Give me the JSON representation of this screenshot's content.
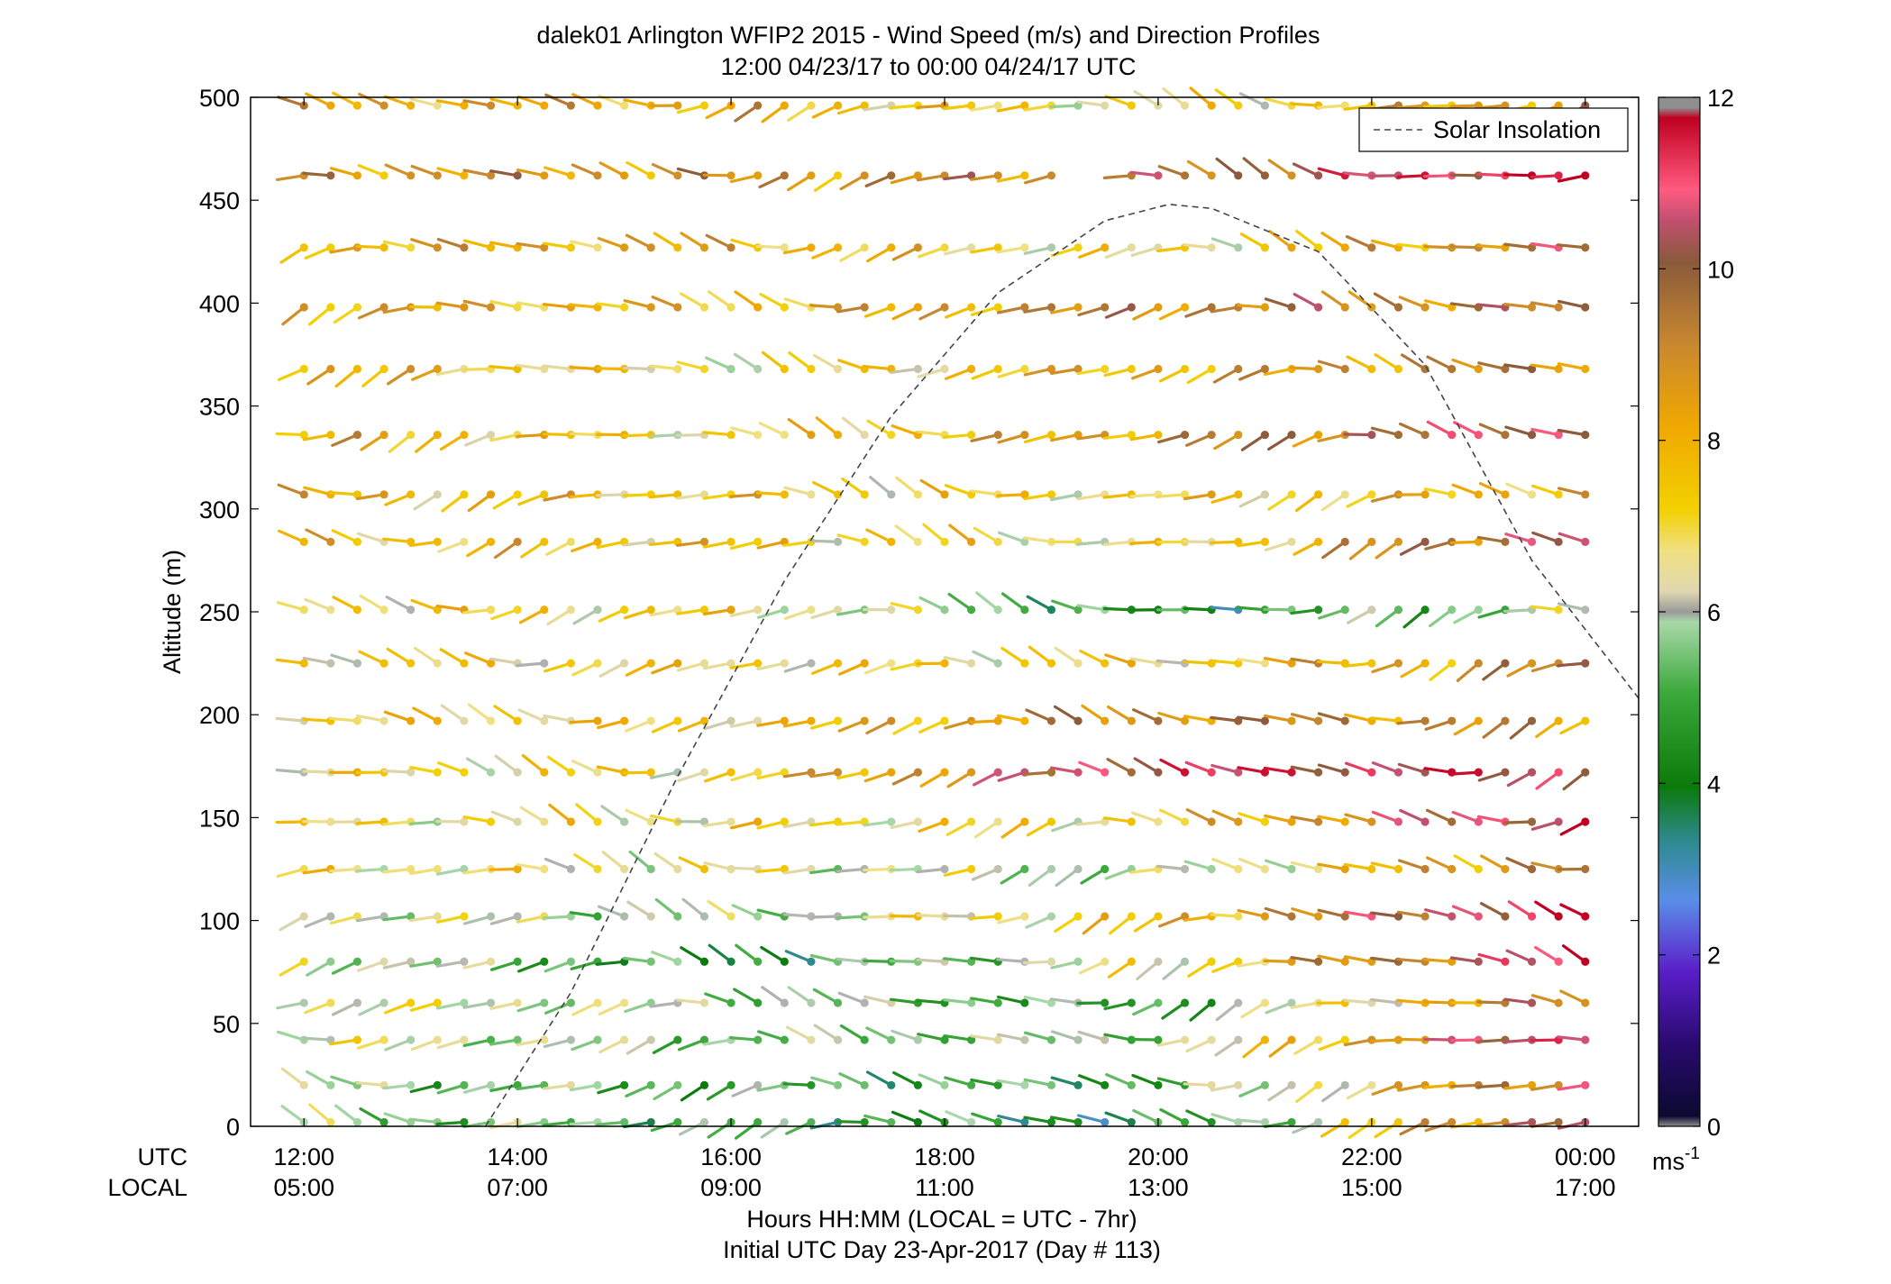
{
  "chart_data": {
    "type": "scatter",
    "subtype": "wind-barb-profile",
    "title": "dalek01 Arlington WFIP2 2015 - Wind Speed (m/s) and Direction Profiles",
    "subtitle": "12:00 04/23/17 to 00:00 04/24/17  UTC",
    "ylabel": "Altitude (m)",
    "ylim": [
      0,
      500
    ],
    "yticks": [
      0,
      50,
      100,
      150,
      200,
      250,
      300,
      350,
      400,
      450,
      500
    ],
    "xlim_hours": [
      11.5,
      24.5
    ],
    "xticks_hours": [
      12,
      14,
      16,
      18,
      20,
      22,
      24
    ],
    "x_row_label_utc": "UTC",
    "x_row_label_local": "LOCAL",
    "x_ticks_utc": [
      "12:00",
      "14:00",
      "16:00",
      "18:00",
      "20:00",
      "22:00",
      "00:00"
    ],
    "x_ticks_local": [
      "05:00",
      "07:00",
      "09:00",
      "11:00",
      "13:00",
      "15:00",
      "17:00"
    ],
    "xlabel": "Hours HH:MM  (LOCAL = UTC - 7hr)",
    "xlabel2": "Initial UTC Day 23-Apr-2017 (Day # 113)",
    "legend": {
      "entries": [
        "Solar Insolation"
      ],
      "position": "top-right"
    },
    "colorbar": {
      "range": [
        0,
        12
      ],
      "ticks": [
        0,
        2,
        4,
        6,
        8,
        10,
        12
      ],
      "unit": "ms",
      "unit_superscript": "-1"
    },
    "solar_insolation_curve": {
      "description_hours": [
        13.7,
        14.5,
        15.5,
        16.5,
        17.5,
        18.5,
        19.5,
        20.1,
        20.5,
        21.5,
        22.5,
        23.5,
        24.5
      ],
      "altitude_equiv": [
        0,
        65,
        170,
        265,
        345,
        405,
        440,
        448,
        446,
        425,
        370,
        275,
        208
      ]
    },
    "levels_m": [
      2,
      20,
      42,
      60,
      80,
      102,
      125,
      148,
      172,
      197,
      225,
      251,
      284,
      307,
      336,
      368,
      398,
      427,
      462,
      496
    ],
    "sample_profiles": [
      {
        "time_utc": "12:00",
        "speed_ms": [
          5.5,
          5.5,
          6.5,
          6.5,
          6.3,
          6.5,
          6.7,
          6.6,
          6.8,
          7.0,
          7.0,
          7.2,
          7.5,
          7.8,
          8.0,
          8.0,
          8.2,
          8.0,
          8.5,
          8.0
        ]
      },
      {
        "time_utc": "16:00",
        "speed_ms": [
          4.8,
          4.8,
          5.2,
          5.6,
          4.0,
          5.5,
          6.5,
          6.8,
          7.0,
          7.2,
          7.0,
          7.0,
          7.5,
          7.3,
          6.8,
          6.5,
          7.5,
          8.0,
          8.5,
          8.0
        ]
      },
      {
        "time_utc": "20:00",
        "speed_ms": [
          3.8,
          4.5,
          5.5,
          4.5,
          6.5,
          7.5,
          5.5,
          7.0,
          10.8,
          9.0,
          7.0,
          4.0,
          6.5,
          7.0,
          8.5,
          8.0,
          9.0,
          6.5,
          9.0,
          6.5
        ]
      },
      {
        "time_utc": "00:00",
        "speed_ms": [
          10.5,
          10.0,
          11.2,
          9.5,
          11.0,
          11.5,
          9.5,
          11.3,
          10.5,
          8.5,
          9.0,
          5.8,
          10.5,
          8.0,
          10.5,
          9.0,
          9.0,
          9.5,
          11.8,
          8.8
        ]
      }
    ]
  }
}
